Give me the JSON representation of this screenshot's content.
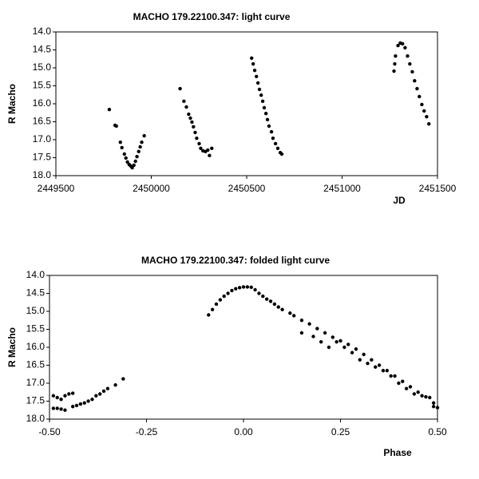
{
  "chart_data": [
    {
      "type": "scatter",
      "title": "MACHO 179.22100.347: light curve",
      "xlabel": "JD",
      "ylabel": "R Macho",
      "color": "#000000",
      "xlim": [
        2449500,
        2451500
      ],
      "xticks": [
        2449500,
        2450000,
        2450500,
        2451000,
        2451500
      ],
      "ylim": [
        18,
        14
      ],
      "yticks": [
        {
          "value": 14,
          "label": "14.0"
        },
        14.5,
        {
          "value": 15,
          "label": "15.0"
        },
        15.5,
        {
          "value": 16,
          "label": "16.0"
        },
        16.5,
        {
          "value": 17,
          "label": "17.0"
        },
        17.5,
        {
          "value": 18,
          "label": "18.0"
        }
      ],
      "x": [
        2449780,
        2449810,
        2449817,
        2449838,
        2449846,
        2449859,
        2449867,
        2449875,
        2449884,
        2449892,
        2449900,
        2449909,
        2449917,
        2449925,
        2449934,
        2449942,
        2449950,
        2449963,
        2450151,
        2450171,
        2450184,
        2450196,
        2450205,
        2450213,
        2450221,
        2450230,
        2450238,
        2450251,
        2450259,
        2450271,
        2450284,
        2450296,
        2450305,
        2450317,
        2450526,
        2450534,
        2450542,
        2450551,
        2450559,
        2450567,
        2450576,
        2450584,
        2450592,
        2450601,
        2450609,
        2450617,
        2450630,
        2450638,
        2450651,
        2450663,
        2450676,
        2450684,
        2451272,
        2451276,
        2451280,
        2451293,
        2451305,
        2451317,
        2451330,
        2451343,
        2451355,
        2451368,
        2451380,
        2451393,
        2451405,
        2451418,
        2451430,
        2451443,
        2451455
      ],
      "values": [
        16.16,
        16.6,
        16.62,
        17.07,
        17.22,
        17.4,
        17.51,
        17.62,
        17.69,
        17.73,
        17.78,
        17.71,
        17.6,
        17.47,
        17.33,
        17.2,
        17.07,
        16.89,
        15.58,
        15.93,
        16.09,
        16.29,
        16.4,
        16.51,
        16.64,
        16.8,
        16.96,
        17.11,
        17.24,
        17.31,
        17.33,
        17.29,
        17.44,
        17.24,
        14.73,
        14.89,
        15.07,
        15.24,
        15.42,
        15.6,
        15.76,
        15.93,
        16.11,
        16.27,
        16.44,
        16.62,
        16.78,
        16.96,
        17.11,
        17.24,
        17.36,
        17.4,
        15.09,
        14.89,
        14.67,
        14.38,
        14.31,
        14.33,
        14.44,
        14.67,
        14.89,
        15.11,
        15.36,
        15.58,
        15.8,
        16.02,
        16.2,
        16.36,
        16.56
      ]
    },
    {
      "type": "scatter",
      "title": "MACHO 179.22100.347: folded light curve",
      "xlabel": "Phase",
      "ylabel": "R Macho",
      "color": "#000000",
      "xlim": [
        -0.5,
        0.5
      ],
      "xticks": [
        {
          "value": -0.5,
          "label": "-0.50"
        },
        {
          "value": -0.25,
          "label": "-0.25"
        },
        {
          "value": 0,
          "label": "0.00"
        },
        {
          "value": 0.25,
          "label": "0.25"
        },
        {
          "value": 0.5,
          "label": "0.50"
        }
      ],
      "ylim": [
        18,
        14
      ],
      "yticks": [
        {
          "value": 14,
          "label": "14.0"
        },
        14.5,
        {
          "value": 15,
          "label": "15.0"
        },
        15.5,
        {
          "value": 16,
          "label": "16.0"
        },
        16.5,
        {
          "value": 17,
          "label": "17.0"
        },
        17.5,
        {
          "value": 18,
          "label": "18.0"
        }
      ],
      "x": [
        -0.49,
        -0.48,
        -0.47,
        -0.46,
        -0.45,
        -0.44,
        -0.49,
        -0.48,
        -0.47,
        -0.46,
        -0.44,
        -0.43,
        -0.42,
        -0.41,
        -0.4,
        -0.39,
        -0.38,
        -0.37,
        -0.36,
        -0.35,
        -0.33,
        -0.31,
        -0.09,
        -0.08,
        -0.07,
        -0.06,
        -0.05,
        -0.04,
        -0.03,
        -0.02,
        -0.01,
        0,
        0.01,
        0.02,
        0.03,
        0.04,
        0.05,
        0.06,
        0.07,
        0.08,
        0.09,
        0.1,
        0.12,
        0.13,
        0.15,
        0.17,
        0.19,
        0.21,
        0.23,
        0.25,
        0.27,
        0.29,
        0.31,
        0.33,
        0.35,
        0.37,
        0.39,
        0.41,
        0.43,
        0.45,
        0.47,
        0.49,
        0.5,
        0.15,
        0.18,
        0.2,
        0.22,
        0.24,
        0.26,
        0.28,
        0.3,
        0.32,
        0.34,
        0.36,
        0.38,
        0.4,
        0.42,
        0.44,
        0.46,
        0.48,
        0.49
      ],
      "values": [
        17.35,
        17.4,
        17.45,
        17.35,
        17.3,
        17.28,
        17.7,
        17.7,
        17.72,
        17.75,
        17.65,
        17.62,
        17.58,
        17.55,
        17.5,
        17.45,
        17.35,
        17.3,
        17.22,
        17.15,
        17.05,
        16.88,
        15.1,
        14.95,
        14.8,
        14.68,
        14.58,
        14.5,
        14.42,
        14.37,
        14.34,
        14.32,
        14.32,
        14.33,
        14.4,
        14.5,
        14.58,
        14.66,
        14.72,
        14.8,
        14.88,
        14.95,
        15.05,
        15.12,
        15.25,
        15.35,
        15.48,
        15.6,
        15.72,
        15.82,
        15.92,
        16.05,
        16.2,
        16.35,
        16.5,
        16.65,
        16.8,
        16.95,
        17.1,
        17.25,
        17.38,
        17.55,
        17.68,
        15.6,
        15.7,
        15.85,
        16.0,
        15.85,
        16.0,
        16.15,
        16.35,
        16.45,
        16.55,
        16.65,
        16.8,
        17.0,
        17.15,
        17.3,
        17.35,
        17.4,
        17.65
      ]
    }
  ]
}
